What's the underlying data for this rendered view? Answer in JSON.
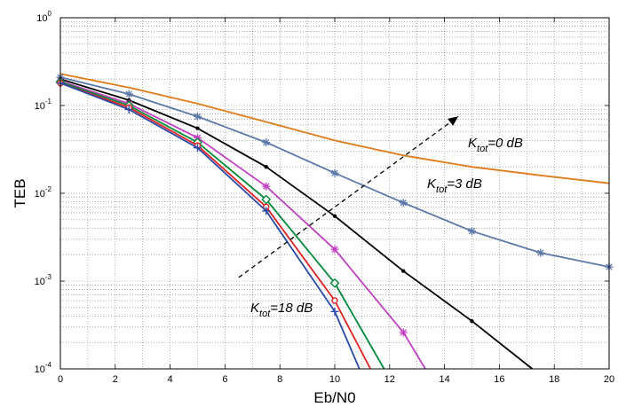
{
  "chart_data": {
    "type": "line",
    "title": "",
    "xlabel": "Eb/N0",
    "ylabel": "TEB",
    "xlim": [
      0,
      20
    ],
    "ylim": [
      0.0001,
      1
    ],
    "yscale": "log",
    "grid": true,
    "x_ticks": [
      "0",
      "2",
      "4",
      "6",
      "8",
      "10",
      "12",
      "14",
      "16",
      "18",
      "20"
    ],
    "y_ticks": [
      {
        "base": "10",
        "exp": "-4"
      },
      {
        "base": "10",
        "exp": "-3"
      },
      {
        "base": "10",
        "exp": "-2"
      },
      {
        "base": "10",
        "exp": "-1"
      },
      {
        "base": "10",
        "exp": "0"
      }
    ],
    "series": [
      {
        "color": "#e07b1a",
        "marker": "none",
        "x": [
          0,
          2.5,
          5,
          7.5,
          10,
          12.5,
          15,
          17.5,
          20
        ],
        "y": [
          0.23,
          0.16,
          0.105,
          0.065,
          0.04,
          0.027,
          0.02,
          0.016,
          0.013
        ]
      },
      {
        "color": "#5a78a8",
        "marker": "star",
        "x": [
          0,
          2.5,
          5,
          7.5,
          10,
          12.5,
          15,
          17.5,
          20
        ],
        "y": [
          0.21,
          0.135,
          0.075,
          0.038,
          0.017,
          0.0078,
          0.0037,
          0.0021,
          0.00145
        ]
      },
      {
        "color": "#000000",
        "marker": "dot",
        "x": [
          0,
          2.5,
          5,
          7.5,
          10,
          12.5,
          15,
          17.2
        ],
        "y": [
          0.2,
          0.115,
          0.055,
          0.02,
          0.0055,
          0.0013,
          0.00035,
          0.0001
        ]
      },
      {
        "color": "#c040c0",
        "marker": "star",
        "x": [
          0,
          2.5,
          5,
          7.5,
          10,
          12.5,
          13.3
        ],
        "y": [
          0.19,
          0.105,
          0.043,
          0.012,
          0.0023,
          0.00026,
          0.0001
        ]
      },
      {
        "color": "#008a3a",
        "marker": "diamond",
        "x": [
          0,
          2.5,
          5,
          7.5,
          10,
          11.8
        ],
        "y": [
          0.185,
          0.1,
          0.038,
          0.0085,
          0.00095,
          0.0001
        ]
      },
      {
        "color": "#e02020",
        "marker": "circle",
        "x": [
          0,
          2.5,
          5,
          7.5,
          10,
          11.3
        ],
        "y": [
          0.18,
          0.095,
          0.035,
          0.007,
          0.0006,
          0.0001
        ]
      },
      {
        "color": "#2a4aa8",
        "marker": "plus",
        "x": [
          0,
          2.5,
          5,
          7.5,
          10,
          10.9
        ],
        "y": [
          0.18,
          0.09,
          0.033,
          0.0063,
          0.00045,
          0.0001
        ]
      }
    ],
    "annotations": [
      {
        "base": "K",
        "sub": "tot",
        "rest": "=0 dB"
      },
      {
        "base": "K",
        "sub": "tot",
        "rest": "=3 dB"
      },
      {
        "base": "K",
        "sub": "tot",
        "rest": "=18 dB"
      }
    ],
    "arrow": {
      "x1": 6.5,
      "y1": 0.0011,
      "x2": 14.5,
      "y2": 0.075
    }
  }
}
